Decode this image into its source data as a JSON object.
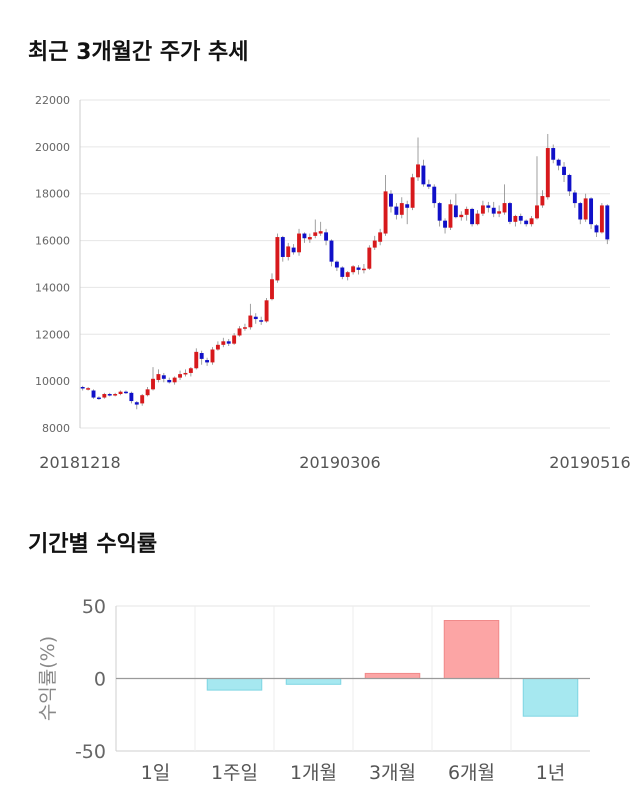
{
  "sections": {
    "price_title": "최근 3개월간 주가 추세",
    "returns_title": "기간별 수익률"
  },
  "chart_data": [
    {
      "type": "candlestick",
      "title": "최근 3개월간 주가 추세",
      "ylim": [
        8000,
        22000
      ],
      "yticks": [
        8000,
        10000,
        12000,
        14000,
        16000,
        18000,
        20000,
        22000
      ],
      "xtick_labels": [
        "20181218",
        "20190306",
        "20190516"
      ],
      "grid": true,
      "colors": {
        "up": "#d7191c",
        "down": "#1010c8",
        "wick": "#888888"
      },
      "candles": [
        [
          9750,
          9700,
          9800,
          9600
        ],
        [
          9650,
          9700,
          9750,
          9600
        ],
        [
          9600,
          9300,
          9650,
          9250
        ],
        [
          9300,
          9250,
          9350,
          9200
        ],
        [
          9300,
          9450,
          9500,
          9250
        ],
        [
          9450,
          9400,
          9500,
          9350
        ],
        [
          9400,
          9450,
          9500,
          9350
        ],
        [
          9450,
          9550,
          9600,
          9400
        ],
        [
          9550,
          9500,
          9600,
          9450
        ],
        [
          9500,
          9150,
          9550,
          9050
        ],
        [
          9100,
          9000,
          9150,
          8800
        ],
        [
          9050,
          9400,
          9450,
          8950
        ],
        [
          9400,
          9650,
          9750,
          9350
        ],
        [
          9650,
          10100,
          10600,
          9600
        ],
        [
          10050,
          10300,
          10500,
          9950
        ],
        [
          10250,
          10100,
          10350,
          9950
        ],
        [
          10050,
          9950,
          10150,
          9900
        ],
        [
          9950,
          10150,
          10200,
          9850
        ],
        [
          10150,
          10300,
          10450,
          10050
        ],
        [
          10300,
          10350,
          10500,
          10200
        ],
        [
          10350,
          10550,
          10600,
          10200
        ],
        [
          10550,
          11250,
          11400,
          10500
        ],
        [
          11200,
          10950,
          11300,
          10700
        ],
        [
          10900,
          10800,
          11000,
          10650
        ],
        [
          10800,
          11350,
          11450,
          10700
        ],
        [
          11350,
          11550,
          11700,
          11300
        ],
        [
          11550,
          11700,
          11850,
          11450
        ],
        [
          11700,
          11600,
          11800,
          11500
        ],
        [
          11600,
          11950,
          12050,
          11550
        ],
        [
          11950,
          12250,
          12350,
          11900
        ],
        [
          12250,
          12300,
          12450,
          12150
        ],
        [
          12300,
          12800,
          13300,
          12200
        ],
        [
          12750,
          12650,
          12900,
          12450
        ],
        [
          12600,
          12550,
          12750,
          12400
        ],
        [
          12550,
          13450,
          13550,
          12500
        ],
        [
          13500,
          14350,
          14600,
          13450
        ],
        [
          14300,
          16150,
          16300,
          14200
        ],
        [
          16150,
          15300,
          16200,
          15100
        ],
        [
          15300,
          15750,
          15900,
          15150
        ],
        [
          15700,
          15500,
          15850,
          15400
        ],
        [
          15500,
          16300,
          16500,
          15350
        ],
        [
          16300,
          16100,
          16350,
          15900
        ],
        [
          16050,
          16150,
          16300,
          15900
        ],
        [
          16200,
          16350,
          16900,
          16100
        ],
        [
          16300,
          16400,
          16800,
          16200
        ],
        [
          16350,
          16000,
          16500,
          15800
        ],
        [
          16000,
          15100,
          16050,
          14900
        ],
        [
          15100,
          14850,
          15150,
          14700
        ],
        [
          14850,
          14450,
          14900,
          14350
        ],
        [
          14450,
          14650,
          14700,
          14300
        ],
        [
          14650,
          14900,
          14950,
          14550
        ],
        [
          14850,
          14750,
          14950,
          14550
        ],
        [
          14750,
          14800,
          15000,
          14600
        ],
        [
          14800,
          15700,
          15800,
          14750
        ],
        [
          15700,
          16000,
          16200,
          15600
        ],
        [
          15950,
          16350,
          16500,
          15800
        ],
        [
          16300,
          18100,
          18800,
          16200
        ],
        [
          18000,
          17450,
          18150,
          17200
        ],
        [
          17450,
          17100,
          17600,
          16900
        ],
        [
          17100,
          17600,
          17850,
          16950
        ],
        [
          17550,
          17400,
          17700,
          16700
        ],
        [
          17400,
          18700,
          18850,
          17300
        ],
        [
          18700,
          19250,
          20400,
          18550
        ],
        [
          19200,
          18400,
          19450,
          18300
        ],
        [
          18400,
          18300,
          18600,
          18200
        ],
        [
          18300,
          17600,
          18400,
          17400
        ],
        [
          17600,
          16850,
          17650,
          16600
        ],
        [
          16850,
          16550,
          16950,
          16300
        ],
        [
          16550,
          17550,
          17750,
          16450
        ],
        [
          17500,
          17000,
          18000,
          16950
        ],
        [
          17000,
          17100,
          17250,
          16850
        ],
        [
          17100,
          17350,
          17450,
          16850
        ],
        [
          17350,
          16700,
          17400,
          16600
        ],
        [
          16700,
          17150,
          17300,
          16650
        ],
        [
          17150,
          17500,
          17700,
          17050
        ],
        [
          17500,
          17400,
          17650,
          17200
        ],
        [
          17400,
          17150,
          17650,
          17000
        ],
        [
          17150,
          17250,
          17500,
          17000
        ],
        [
          17200,
          17600,
          18400,
          17100
        ],
        [
          17600,
          16800,
          17650,
          16700
        ],
        [
          16800,
          17050,
          17100,
          16600
        ],
        [
          17050,
          16850,
          17150,
          16700
        ],
        [
          16850,
          16700,
          16900,
          16600
        ],
        [
          16700,
          16950,
          17050,
          16600
        ],
        [
          16950,
          17500,
          19600,
          16900
        ],
        [
          17500,
          17900,
          18150,
          17400
        ],
        [
          17850,
          19950,
          20550,
          17750
        ],
        [
          19950,
          19450,
          20100,
          19300
        ],
        [
          19450,
          19200,
          19500,
          19000
        ],
        [
          19150,
          18800,
          19350,
          18500
        ],
        [
          18800,
          18100,
          18850,
          17900
        ],
        [
          18050,
          17600,
          18150,
          17400
        ],
        [
          17600,
          16900,
          17650,
          16700
        ],
        [
          16900,
          17800,
          18000,
          16800
        ],
        [
          17800,
          16700,
          17850,
          16500
        ],
        [
          16650,
          16350,
          16700,
          16150
        ],
        [
          16350,
          17500,
          17600,
          16300
        ],
        [
          17500,
          16050,
          17550,
          15850
        ]
      ]
    },
    {
      "type": "bar",
      "title": "기간별 수익률",
      "ylabel": "수익률(%)",
      "categories": [
        "1일",
        "1주일",
        "1개월",
        "3개월",
        "6개월",
        "1년"
      ],
      "values": [
        0,
        -8,
        -4,
        3.5,
        40,
        -26
      ],
      "ylim": [
        -50,
        50
      ],
      "yticks": [
        50,
        0,
        -50
      ],
      "grid": true,
      "colors": {
        "positive": "#fca5a5",
        "negative": "#a6e8f0",
        "positive_edge": "#f08a8a",
        "negative_edge": "#7fd6e3"
      }
    }
  ]
}
